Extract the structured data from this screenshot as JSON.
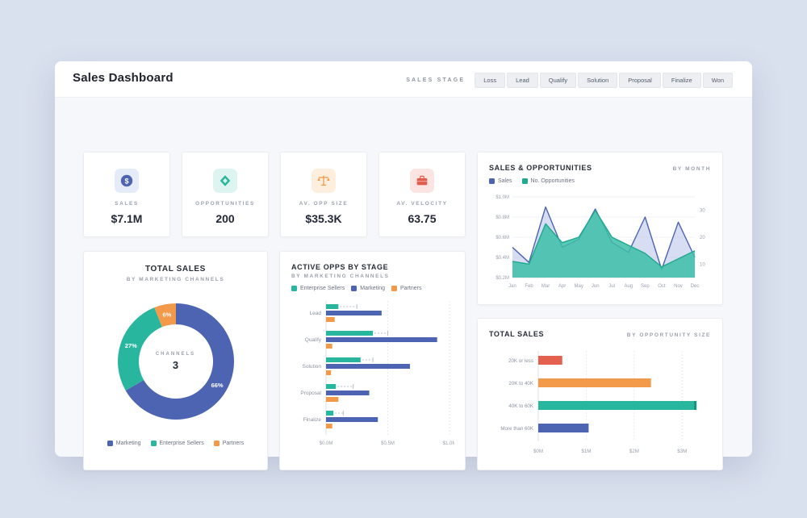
{
  "header": {
    "title": "Sales Dashboard",
    "stage_label": "SALES STAGE",
    "stages": [
      "Loss",
      "Lead",
      "Qualify",
      "Solution",
      "Proposal",
      "Finalize",
      "Won"
    ]
  },
  "kpis": [
    {
      "label": "SALES",
      "value": "$7.1M",
      "icon": "dollar-coin-icon",
      "color": "#4c64b2",
      "bg": "#e6ebf9"
    },
    {
      "label": "OPPORTUNITIES",
      "value": "200",
      "icon": "gem-icon",
      "color": "#29b69e",
      "bg": "#def4f0"
    },
    {
      "label": "AV. OPP SIZE",
      "value": "$35.3K",
      "icon": "scales-icon",
      "color": "#f2994a",
      "bg": "#fdeedd"
    },
    {
      "label": "AV. VELOCITY",
      "value": "63.75",
      "icon": "briefcase-icon",
      "color": "#e05d4e",
      "bg": "#fbe4e1"
    }
  ],
  "chart_data": [
    {
      "type": "area",
      "title": "SALES & OPPORTUNITIES",
      "subtitle": "BY MONTH",
      "x": [
        "Jan",
        "Feb",
        "Mar",
        "Apr",
        "May",
        "Jun",
        "Jul",
        "Aug",
        "Sep",
        "Oct",
        "Nov",
        "Dec"
      ],
      "series": [
        {
          "name": "Sales",
          "axis": "left",
          "color": "#4c64b2",
          "fill": "#b7c1e8",
          "values": [
            0.5,
            0.35,
            0.9,
            0.5,
            0.58,
            0.88,
            0.55,
            0.45,
            0.8,
            0.28,
            0.75,
            0.4
          ]
        },
        {
          "name": "No. Opportunities",
          "axis": "right",
          "color": "#1fa98f",
          "fill": "#3cc0a8",
          "values": [
            11,
            10,
            25,
            18,
            20,
            30,
            20,
            17,
            14,
            9,
            12,
            15
          ]
        }
      ],
      "left_axis": {
        "range": [
          0.2,
          1.0
        ],
        "ticks": [
          {
            "v": 1.0,
            "label": "$1.0M"
          },
          {
            "v": 0.8,
            "label": "$0.8M"
          },
          {
            "v": 0.6,
            "label": "$0.6M"
          },
          {
            "v": 0.4,
            "label": "$0.4M"
          },
          {
            "v": 0.2,
            "label": "$0.2M"
          }
        ]
      },
      "right_axis": {
        "range": [
          5,
          35
        ],
        "ticks": [
          {
            "v": 30,
            "label": "30"
          },
          {
            "v": 20,
            "label": "20"
          },
          {
            "v": 10,
            "label": "10"
          }
        ]
      },
      "legend_position": "top",
      "grid": true
    },
    {
      "type": "pie",
      "title": "TOTAL SALES",
      "subtitle": "BY MARKETING CHANNELS",
      "center_label": "CHANNELS",
      "center_value": "3",
      "slices": [
        {
          "label": "Marketing",
          "value": 66,
          "display": "66%",
          "color": "#4c64b2"
        },
        {
          "label": "Enterprise Sellers",
          "value": 27,
          "display": "27%",
          "color": "#29b69e"
        },
        {
          "label": "Partners",
          "value": 6,
          "display": "6%",
          "color": "#f2994a"
        }
      ],
      "legend_position": "bottom"
    },
    {
      "type": "bar",
      "orientation": "horizontal",
      "title": "ACTIVE OPPS BY STAGE",
      "subtitle": "BY MARKETING CHANNELS",
      "categories": [
        "Lead",
        "Qualify",
        "Solution",
        "Proposal",
        "Finalize"
      ],
      "series": [
        {
          "name": "Enterprise Sellers",
          "color": "#29b69e",
          "values": [
            0.1,
            0.38,
            0.28,
            0.08,
            0.06
          ]
        },
        {
          "name": "Marketing",
          "color": "#4c64b2",
          "values": [
            0.45,
            0.9,
            0.68,
            0.35,
            0.42
          ]
        },
        {
          "name": "Partners",
          "color": "#f2994a",
          "values": [
            0.07,
            0.05,
            0.04,
            0.1,
            0.05
          ]
        }
      ],
      "markers": [
        0.25,
        0.5,
        0.38,
        0.22,
        0.14
      ],
      "xlim": [
        0,
        1.0
      ],
      "ticks": [
        {
          "v": 0,
          "label": "$0.0M"
        },
        {
          "v": 0.5,
          "label": "$0.5M"
        },
        {
          "v": 1.0,
          "label": "$1.0M"
        }
      ],
      "legend_position": "top",
      "grid": true
    },
    {
      "type": "bar",
      "orientation": "horizontal",
      "title": "TOTAL SALES",
      "subtitle": "BY OPPORTUNITY SIZE",
      "categories": [
        "20K or less",
        "20K to 40K",
        "40K to 60K",
        "More than 60K"
      ],
      "values": [
        0.5,
        2.35,
        3.3,
        1.05
      ],
      "colors": [
        "#e4604e",
        "#f2994a",
        "#29b69e",
        "#4c64b2"
      ],
      "cap_index": 2,
      "cap_color": "#17947c",
      "xlim": [
        0,
        3.5
      ],
      "ticks": [
        {
          "v": 0,
          "label": "$0M"
        },
        {
          "v": 1,
          "label": "$1M"
        },
        {
          "v": 2,
          "label": "$2M"
        },
        {
          "v": 3,
          "label": "$3M"
        }
      ],
      "grid": true
    }
  ]
}
